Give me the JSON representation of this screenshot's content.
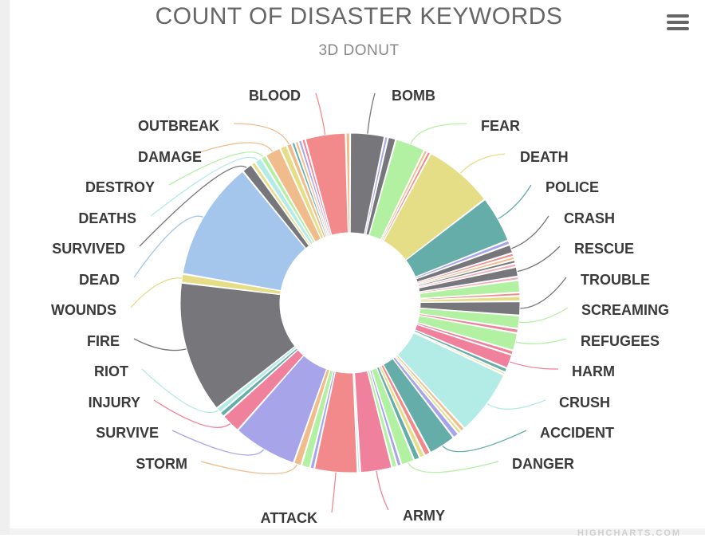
{
  "chart_data": {
    "type": "pie",
    "variant": "donut",
    "title": "COUNT OF DISASTER KEYWORDS",
    "subtitle": "3D DONUT",
    "slices": [
      {
        "name": "BOMB",
        "value": 3.9,
        "color": "#77767a",
        "labeled": true
      },
      {
        "name": "",
        "value": 0.4,
        "color": "#a8a4ea",
        "labeled": false
      },
      {
        "name": "",
        "value": 0.9,
        "color": "#77767a",
        "labeled": false
      },
      {
        "name": "FEAR",
        "value": 3.4,
        "color": "#b2f0a2",
        "labeled": true
      },
      {
        "name": "",
        "value": 0.4,
        "color": "#f0bc8c",
        "labeled": false
      },
      {
        "name": "",
        "value": 0.4,
        "color": "#f28a8c",
        "labeled": false
      },
      {
        "name": "DEATH",
        "value": 8.0,
        "color": "#e6dd87",
        "labeled": true
      },
      {
        "name": "POLICE",
        "value": 5.3,
        "color": "#64ada8",
        "labeled": true
      },
      {
        "name": "",
        "value": 0.5,
        "color": "#a8a4ea",
        "labeled": false
      },
      {
        "name": "CRASH",
        "value": 1.0,
        "color": "#77767a",
        "labeled": true
      },
      {
        "name": "",
        "value": 0.4,
        "color": "#f28a8c",
        "labeled": false
      },
      {
        "name": "",
        "value": 0.4,
        "color": "#f0bc8c",
        "labeled": false
      },
      {
        "name": "",
        "value": 0.4,
        "color": "#77767a",
        "labeled": false
      },
      {
        "name": "",
        "value": 0.4,
        "color": "#f5a9b7",
        "labeled": false
      },
      {
        "name": "RESCUE",
        "value": 1.1,
        "color": "#77767a",
        "labeled": true
      },
      {
        "name": "",
        "value": 0.4,
        "color": "#f5a9b7",
        "labeled": false
      },
      {
        "name": "",
        "value": 1.4,
        "color": "#b2f0a2",
        "labeled": false
      },
      {
        "name": "",
        "value": 0.4,
        "color": "#f28a8c",
        "labeled": false
      },
      {
        "name": "",
        "value": 0.6,
        "color": "#e6dd87",
        "labeled": false
      },
      {
        "name": "TROUBLE",
        "value": 1.6,
        "color": "#77767a",
        "labeled": true
      },
      {
        "name": "SCREAMING",
        "value": 1.5,
        "color": "#b2f0a2",
        "labeled": true
      },
      {
        "name": "",
        "value": 0.5,
        "color": "#f0819d",
        "labeled": false
      },
      {
        "name": "REFUGEES",
        "value": 2.0,
        "color": "#b2f0a2",
        "labeled": true
      },
      {
        "name": "",
        "value": 0.5,
        "color": "#f0819d",
        "labeled": false
      },
      {
        "name": "HARM",
        "value": 1.6,
        "color": "#f0819d",
        "labeled": true
      },
      {
        "name": "",
        "value": 0.5,
        "color": "#64ada8",
        "labeled": false
      },
      {
        "name": "",
        "value": 0.3,
        "color": "#e6dd87",
        "labeled": false
      },
      {
        "name": "CRUSH",
        "value": 7.5,
        "color": "#b3ebe6",
        "labeled": true
      },
      {
        "name": "",
        "value": 0.5,
        "color": "#f0bc8c",
        "labeled": false
      },
      {
        "name": "",
        "value": 0.4,
        "color": "#e6dd87",
        "labeled": false
      },
      {
        "name": "",
        "value": 0.7,
        "color": "#a8a4ea",
        "labeled": false
      },
      {
        "name": "ACCIDENT",
        "value": 3.1,
        "color": "#64ada8",
        "labeled": true
      },
      {
        "name": "",
        "value": 0.7,
        "color": "#f28a8c",
        "labeled": false
      },
      {
        "name": "",
        "value": 0.6,
        "color": "#e6dd87",
        "labeled": false
      },
      {
        "name": "",
        "value": 0.7,
        "color": "#64ada8",
        "labeled": false
      },
      {
        "name": "DANGER",
        "value": 1.5,
        "color": "#b2f0a2",
        "labeled": true
      },
      {
        "name": "",
        "value": 0.5,
        "color": "#a8a4ea",
        "labeled": false
      },
      {
        "name": "",
        "value": 0.6,
        "color": "#b2f0a2",
        "labeled": false
      },
      {
        "name": "ARMY",
        "value": 3.6,
        "color": "#f0819d",
        "labeled": true
      },
      {
        "name": "",
        "value": 0.3,
        "color": "#b3ebe6",
        "labeled": false
      },
      {
        "name": "ATTACK",
        "value": 4.9,
        "color": "#f28a8c",
        "labeled": true
      },
      {
        "name": "",
        "value": 0.5,
        "color": "#a8a4ea",
        "labeled": false
      },
      {
        "name": "",
        "value": 1.0,
        "color": "#b2f0a2",
        "labeled": false
      },
      {
        "name": "STORM",
        "value": 0.9,
        "color": "#f0bc8c",
        "labeled": true
      },
      {
        "name": "SURVIVE",
        "value": 7.3,
        "color": "#a8a4ea",
        "labeled": true
      },
      {
        "name": "INJURY",
        "value": 2.2,
        "color": "#f0819d",
        "labeled": true
      },
      {
        "name": "",
        "value": 0.6,
        "color": "#64ada8",
        "labeled": false
      },
      {
        "name": "RIOT",
        "value": 0.6,
        "color": "#b3ebe6",
        "labeled": true
      },
      {
        "name": "FIRE",
        "value": 15.0,
        "color": "#77767a",
        "labeled": true
      },
      {
        "name": "WOUNDS",
        "value": 1.0,
        "color": "#e6dd87",
        "labeled": true
      },
      {
        "name": "DEAD",
        "value": 13.6,
        "color": "#a4c6ec",
        "labeled": true
      },
      {
        "name": "SURVIVED",
        "value": 1.2,
        "color": "#77767a",
        "labeled": true
      },
      {
        "name": "",
        "value": 0.5,
        "color": "#e6dd87",
        "labeled": false
      },
      {
        "name": "DEATHS",
        "value": 0.8,
        "color": "#b3ebe6",
        "labeled": true
      },
      {
        "name": "DESTROY",
        "value": 0.6,
        "color": "#b2f0a2",
        "labeled": true
      },
      {
        "name": "DAMAGE",
        "value": 1.8,
        "color": "#f0bc8c",
        "labeled": true
      },
      {
        "name": "",
        "value": 0.8,
        "color": "#e6dd87",
        "labeled": false
      },
      {
        "name": "OUTBREAK",
        "value": 0.6,
        "color": "#f0bc8c",
        "labeled": true
      },
      {
        "name": "",
        "value": 0.4,
        "color": "#64ada8",
        "labeled": false
      },
      {
        "name": "",
        "value": 0.4,
        "color": "#f0bc8c",
        "labeled": false
      },
      {
        "name": "",
        "value": 0.4,
        "color": "#a8a4ea",
        "labeled": false
      },
      {
        "name": "",
        "value": 0.4,
        "color": "#f0819d",
        "labeled": false
      },
      {
        "name": "BLOOD",
        "value": 4.6,
        "color": "#f28a8c",
        "labeled": true
      },
      {
        "name": "",
        "value": 0.5,
        "color": "#f0bc8c",
        "labeled": false
      }
    ]
  },
  "menu": {
    "icon": "hamburger-menu-icon"
  },
  "credit": "HIGHCHARTS.COM"
}
